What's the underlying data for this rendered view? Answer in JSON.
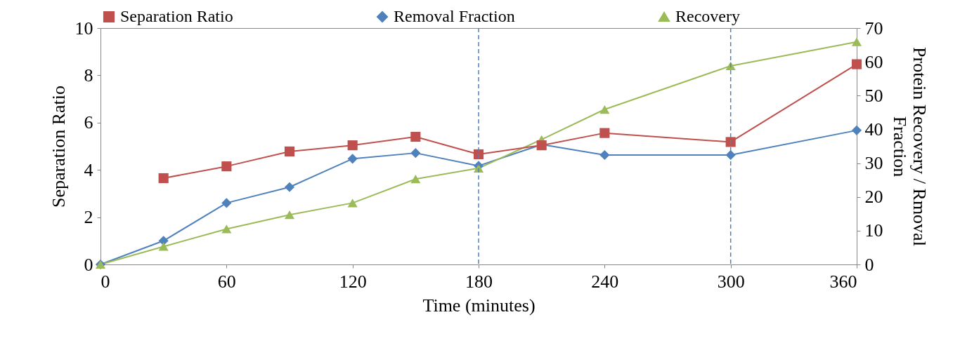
{
  "chart_data": {
    "type": "line",
    "xlabel": "Time (minutes)",
    "ylabel": "Separation Ratio",
    "y2label": "Protein Recovery / Rmoval Fraction",
    "x": [
      0,
      30,
      60,
      90,
      120,
      150,
      180,
      210,
      240,
      300,
      360
    ],
    "xlim": [
      0,
      360
    ],
    "xticks": [
      0,
      60,
      120,
      180,
      240,
      300,
      360
    ],
    "ylim": [
      0,
      10
    ],
    "yticks": [
      0,
      2,
      4,
      6,
      8,
      10
    ],
    "y2lim": [
      0,
      70
    ],
    "y2ticks": [
      0,
      10,
      20,
      30,
      40,
      50,
      60,
      70
    ],
    "series": [
      {
        "name": "Separation Ratio",
        "color": "#c0504d",
        "marker": "square",
        "values": [
          null,
          3.65,
          4.15,
          4.78,
          5.04,
          5.4,
          4.66,
          5.04,
          5.56,
          5.18,
          8.47
        ]
      },
      {
        "name": "Removal Fraction",
        "color": "#4f81bd",
        "marker": "diamond",
        "axis": "y2",
        "values": [
          0,
          7,
          18.2,
          22.9,
          31.3,
          33,
          29.2,
          35.5,
          32.4,
          32.4,
          39.7
        ]
      },
      {
        "name": "Recovery",
        "color": "#9bbb59",
        "marker": "triangle",
        "axis": "y2",
        "values": [
          0,
          5.3,
          10.5,
          14.7,
          18.2,
          25.3,
          28.5,
          37,
          45.9,
          58.8,
          65.9
        ]
      }
    ],
    "ref_lines": [
      {
        "axis": "x",
        "value": 180,
        "color": "#4f81bd",
        "line_style": "dashed"
      },
      {
        "axis": "x",
        "value": 300,
        "color": "#4f81bd",
        "line_style": "dashed"
      }
    ],
    "grid": false,
    "legend": "top",
    "line_style": "solid"
  }
}
